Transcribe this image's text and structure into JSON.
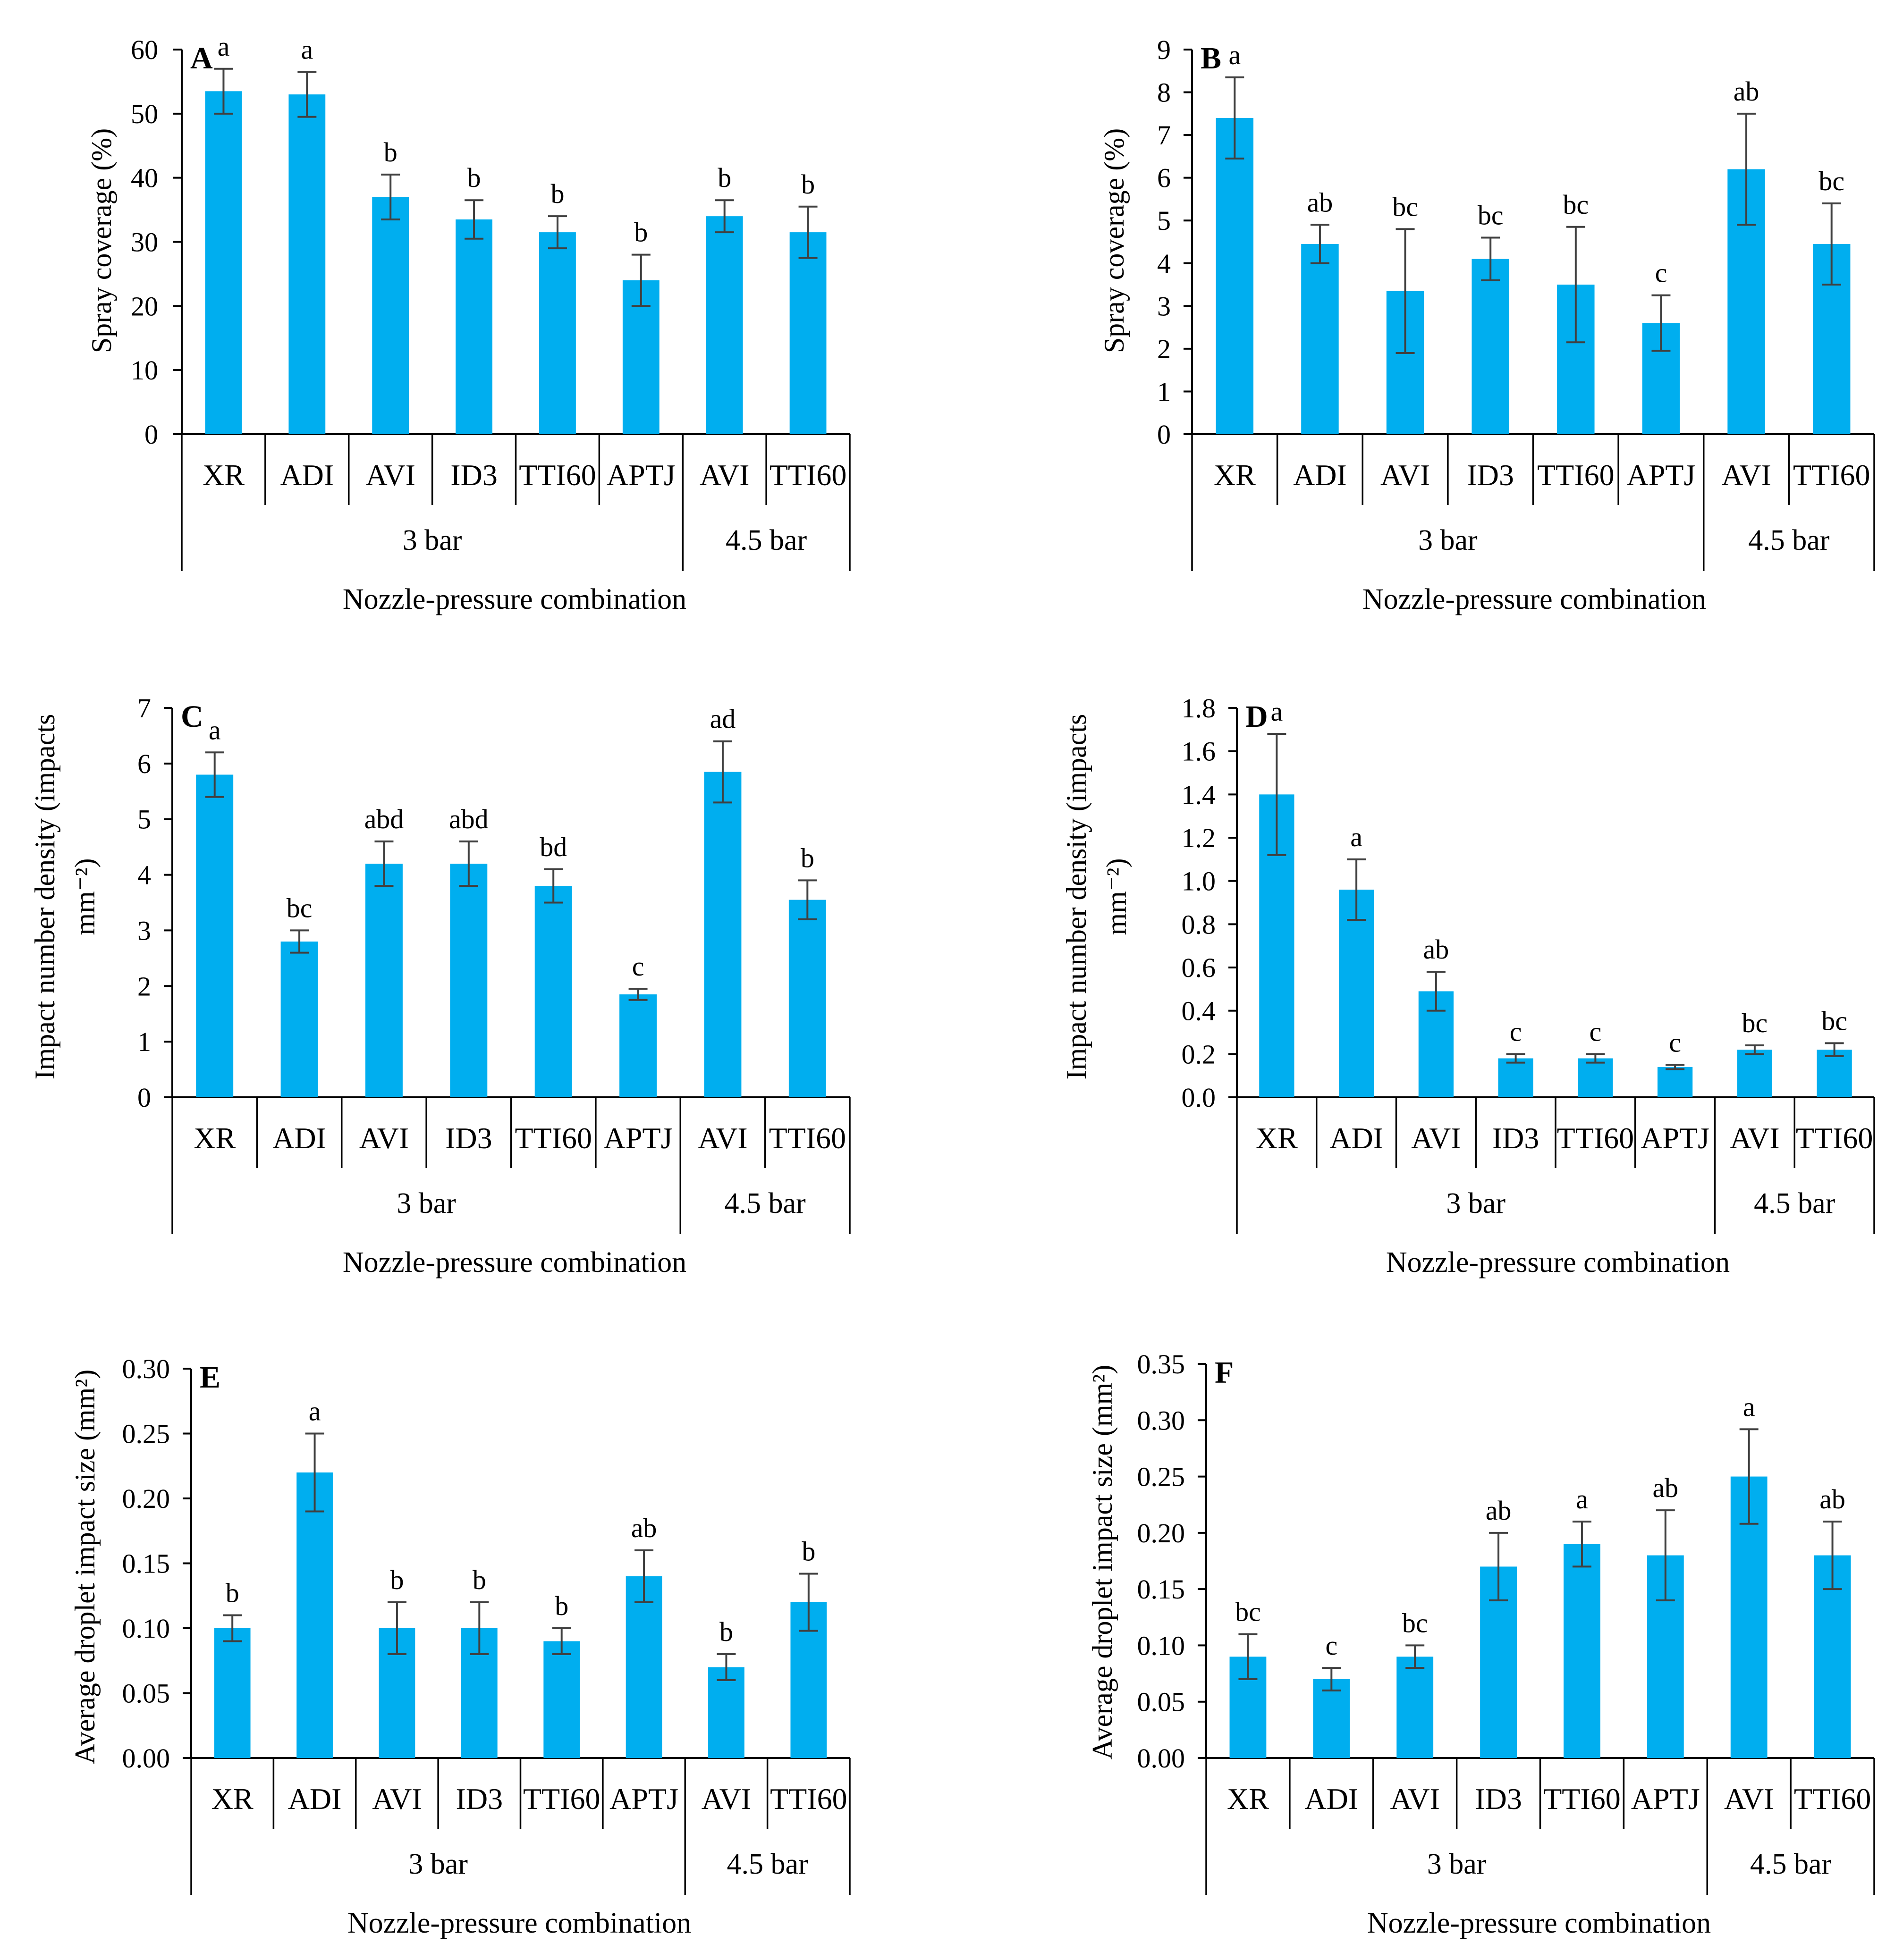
{
  "figure": {
    "xlabel": "Nozzle-pressure combination",
    "bar_color": "#00AEEF",
    "error_color": "#404040"
  },
  "chart_data": [
    {
      "type": "bar",
      "panel": "A",
      "ylabel": "Spray coverage (%)",
      "xlabel": "Nozzle-pressure combination",
      "categories": [
        "XR",
        "ADI",
        "AVI",
        "ID3",
        "TTI60",
        "APTJ",
        "AVI",
        "TTI60"
      ],
      "groups": [
        {
          "label": "3 bar",
          "count": 6
        },
        {
          "label": "4.5 bar",
          "count": 2
        }
      ],
      "values": [
        53.5,
        53,
        37,
        33.5,
        31.5,
        24,
        34,
        31.5
      ],
      "errors": [
        3.5,
        3.5,
        3.5,
        3,
        2.5,
        4,
        2.5,
        4
      ],
      "letters": [
        "a",
        "a",
        "b",
        "b",
        "b",
        "b",
        "b",
        "b"
      ],
      "ylim": [
        0,
        60
      ],
      "yticks": [
        0,
        10,
        20,
        30,
        40,
        50,
        60
      ],
      "ytick_labels": [
        "0",
        "10",
        "20",
        "30",
        "40",
        "50",
        "60"
      ]
    },
    {
      "type": "bar",
      "panel": "B",
      "ylabel": "Spray coverage (%)",
      "xlabel": "Nozzle-pressure combination",
      "categories": [
        "XR",
        "ADI",
        "AVI",
        "ID3",
        "TTI60",
        "APTJ",
        "AVI",
        "TTI60"
      ],
      "groups": [
        {
          "label": "3 bar",
          "count": 6
        },
        {
          "label": "4.5 bar",
          "count": 2
        }
      ],
      "values": [
        7.4,
        4.45,
        3.35,
        4.1,
        3.5,
        2.6,
        6.2,
        4.45
      ],
      "errors": [
        0.95,
        0.45,
        1.45,
        0.5,
        1.35,
        0.65,
        1.3,
        0.95
      ],
      "letters": [
        "a",
        "ab",
        "bc",
        "bc",
        "bc",
        "c",
        "ab",
        "bc"
      ],
      "ylim": [
        0,
        9
      ],
      "yticks": [
        0,
        1,
        2,
        3,
        4,
        5,
        6,
        7,
        8,
        9
      ],
      "ytick_labels": [
        "0",
        "1",
        "2",
        "3",
        "4",
        "5",
        "6",
        "7",
        "8",
        "9"
      ]
    },
    {
      "type": "bar",
      "panel": "C",
      "ylabel": "Impact number density (impacts mm⁻²)",
      "ylabel_lines": [
        "Impact number density (impacts",
        "mm⁻²)"
      ],
      "xlabel": "Nozzle-pressure combination",
      "categories": [
        "XR",
        "ADI",
        "AVI",
        "ID3",
        "TTI60",
        "APTJ",
        "AVI",
        "TTI60"
      ],
      "groups": [
        {
          "label": "3 bar",
          "count": 6
        },
        {
          "label": "4.5 bar",
          "count": 2
        }
      ],
      "values": [
        5.8,
        2.8,
        4.2,
        4.2,
        3.8,
        1.85,
        5.85,
        3.55
      ],
      "errors": [
        0.4,
        0.2,
        0.4,
        0.4,
        0.3,
        0.1,
        0.55,
        0.35
      ],
      "letters": [
        "a",
        "bc",
        "abd",
        "abd",
        "bd",
        "c",
        "ad",
        "b"
      ],
      "ylim": [
        0,
        7
      ],
      "yticks": [
        0,
        1,
        2,
        3,
        4,
        5,
        6,
        7
      ],
      "ytick_labels": [
        "0",
        "1",
        "2",
        "3",
        "4",
        "5",
        "6",
        "7"
      ]
    },
    {
      "type": "bar",
      "panel": "D",
      "ylabel": "Impact number density (impacts mm⁻²)",
      "ylabel_lines": [
        "Impact number density (impacts",
        "mm⁻²)"
      ],
      "xlabel": "Nozzle-pressure combination",
      "categories": [
        "XR",
        "ADI",
        "AVI",
        "ID3",
        "TTI60",
        "APTJ",
        "AVI",
        "TTI60"
      ],
      "groups": [
        {
          "label": "3 bar",
          "count": 6
        },
        {
          "label": "4.5 bar",
          "count": 2
        }
      ],
      "values": [
        1.4,
        0.96,
        0.49,
        0.18,
        0.18,
        0.14,
        0.22,
        0.22
      ],
      "errors": [
        0.28,
        0.14,
        0.09,
        0.02,
        0.02,
        0.01,
        0.02,
        0.03
      ],
      "letters": [
        "a",
        "a",
        "ab",
        "c",
        "c",
        "c",
        "bc",
        "bc"
      ],
      "ylim": [
        0,
        1.8
      ],
      "yticks": [
        0,
        0.2,
        0.4,
        0.6,
        0.8,
        1.0,
        1.2,
        1.4,
        1.6,
        1.8
      ],
      "ytick_labels": [
        "0.0",
        "0.2",
        "0.4",
        "0.6",
        "0.8",
        "1.0",
        "1.2",
        "1.4",
        "1.6",
        "1.8"
      ]
    },
    {
      "type": "bar",
      "panel": "E",
      "ylabel": "Average droplet impact size (mm²)",
      "xlabel": "Nozzle-pressure combination",
      "categories": [
        "XR",
        "ADI",
        "AVI",
        "ID3",
        "TTI60",
        "APTJ",
        "AVI",
        "TTI60"
      ],
      "groups": [
        {
          "label": "3 bar",
          "count": 6
        },
        {
          "label": "4.5 bar",
          "count": 2
        }
      ],
      "values": [
        0.1,
        0.22,
        0.1,
        0.1,
        0.09,
        0.14,
        0.07,
        0.12
      ],
      "errors": [
        0.01,
        0.03,
        0.02,
        0.02,
        0.01,
        0.02,
        0.01,
        0.022
      ],
      "letters": [
        "b",
        "a",
        "b",
        "b",
        "b",
        "ab",
        "b",
        "b"
      ],
      "ylim": [
        0,
        0.3
      ],
      "yticks": [
        0,
        0.05,
        0.1,
        0.15,
        0.2,
        0.25,
        0.3
      ],
      "ytick_labels": [
        "0.00",
        "0.05",
        "0.10",
        "0.15",
        "0.20",
        "0.25",
        "0.30"
      ]
    },
    {
      "type": "bar",
      "panel": "F",
      "ylabel": "Average droplet impact size (mm²)",
      "xlabel": "Nozzle-pressure combination",
      "categories": [
        "XR",
        "ADI",
        "AVI",
        "ID3",
        "TTI60",
        "APTJ",
        "AVI",
        "TTI60"
      ],
      "groups": [
        {
          "label": "3 bar",
          "count": 6
        },
        {
          "label": "4.5 bar",
          "count": 2
        }
      ],
      "values": [
        0.09,
        0.07,
        0.09,
        0.17,
        0.19,
        0.18,
        0.25,
        0.18
      ],
      "errors": [
        0.02,
        0.01,
        0.01,
        0.03,
        0.02,
        0.04,
        0.042,
        0.03
      ],
      "letters": [
        "bc",
        "c",
        "bc",
        "ab",
        "a",
        "ab",
        "a",
        "ab"
      ],
      "ylim": [
        0,
        0.35
      ],
      "yticks": [
        0,
        0.05,
        0.1,
        0.15,
        0.2,
        0.25,
        0.3,
        0.35
      ],
      "ytick_labels": [
        "0.00",
        "0.05",
        "0.10",
        "0.15",
        "0.20",
        "0.25",
        "0.30",
        "0.35"
      ]
    }
  ]
}
